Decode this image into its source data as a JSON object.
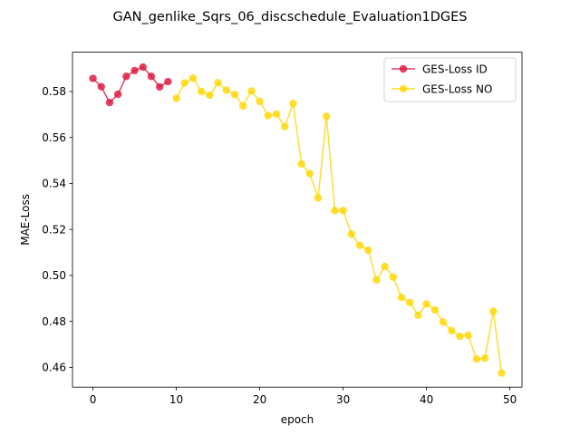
{
  "chart_data": {
    "type": "line",
    "title": "GAN_genlike_Sqrs_06_discschedule_Evaluation1DGES",
    "xlabel": "epoch",
    "ylabel": "MAE-Loss",
    "xlim": [
      -2.45,
      51.45
    ],
    "ylim": [
      0.4514,
      0.5971
    ],
    "xticks": [
      0,
      10,
      20,
      30,
      40,
      50
    ],
    "yticks": [
      0.46,
      0.48,
      0.5,
      0.52,
      0.54,
      0.56,
      0.58
    ],
    "ytick_labels": [
      "0.46",
      "0.48",
      "0.50",
      "0.52",
      "0.54",
      "0.56",
      "0.58"
    ],
    "grid": false,
    "legend_position": "top-right",
    "series": [
      {
        "name": "GES-Loss ID",
        "color": "#dc143c",
        "x": [
          0,
          1,
          2,
          3,
          4,
          5,
          6,
          7,
          8,
          9
        ],
        "y": [
          0.5857,
          0.5821,
          0.5752,
          0.5788,
          0.5866,
          0.5891,
          0.5906,
          0.5866,
          0.582,
          0.5843
        ]
      },
      {
        "name": "GES-Loss NO",
        "color": "#ffd700",
        "x": [
          10,
          11,
          12,
          13,
          14,
          15,
          16,
          17,
          18,
          19,
          20,
          21,
          22,
          23,
          24,
          25,
          26,
          27,
          28,
          29,
          30,
          31,
          32,
          33,
          34,
          35,
          36,
          37,
          38,
          39,
          40,
          41,
          42,
          43,
          44,
          45,
          46,
          47,
          48,
          49
        ],
        "y": [
          0.577,
          0.5837,
          0.5858,
          0.58,
          0.5784,
          0.5838,
          0.5806,
          0.5787,
          0.5737,
          0.5802,
          0.5757,
          0.5695,
          0.5702,
          0.5647,
          0.5748,
          0.5485,
          0.5443,
          0.5337,
          0.5692,
          0.5282,
          0.5282,
          0.518,
          0.5131,
          0.511,
          0.498,
          0.5039,
          0.4993,
          0.4904,
          0.4882,
          0.4827,
          0.4876,
          0.485,
          0.4797,
          0.476,
          0.4735,
          0.474,
          0.4636,
          0.464,
          0.4844,
          0.4575
        ]
      }
    ]
  }
}
